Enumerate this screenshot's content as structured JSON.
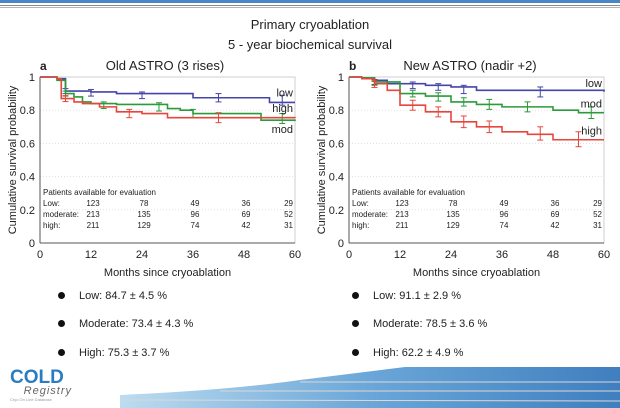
{
  "header": {
    "title": "Primary cryoablation",
    "subtitle": "5 - year biochemical survival"
  },
  "logo": {
    "name": "COLD",
    "registry": "Registry",
    "tagline": "Cryo On Line Database"
  },
  "colors": {
    "low": "#4444aa",
    "moderate": "#2a9a3a",
    "high": "#e8453c",
    "brand_blue": "#4a86c5"
  },
  "chart_data": [
    {
      "type": "line",
      "panel_letter": "a",
      "title": "Old ASTRO (3 rises)",
      "xlabel": "Months since cryoablation",
      "ylabel": "Cumulative survival probability",
      "xlim": [
        0,
        60
      ],
      "ylim": [
        0,
        1
      ],
      "xticks": [
        "0",
        "12",
        "24",
        "36",
        "48",
        "60"
      ],
      "yticks": [
        "0",
        "0.2",
        "0.4",
        "0.6",
        "0.8",
        "1"
      ],
      "grid": true,
      "series": [
        {
          "name": "low",
          "label": "low",
          "color": "#4444aa",
          "steps": [
            [
              0,
              1.0
            ],
            [
              4,
              0.99
            ],
            [
              6,
              0.915
            ],
            [
              12,
              0.91
            ],
            [
              18,
              0.9
            ],
            [
              36,
              0.875
            ],
            [
              54,
              0.847
            ],
            [
              60,
              0.847
            ]
          ],
          "errorbars": [
            [
              6,
              0.915,
              0.015
            ],
            [
              12,
              0.905,
              0.02
            ],
            [
              24,
              0.89,
              0.02
            ],
            [
              42,
              0.875,
              0.025
            ],
            [
              57,
              0.86,
              0.03
            ]
          ]
        },
        {
          "name": "moderate",
          "label": "mod",
          "color": "#2a9a3a",
          "steps": [
            [
              0,
              1.0
            ],
            [
              4,
              0.98
            ],
            [
              6,
              0.9
            ],
            [
              8,
              0.88
            ],
            [
              10,
              0.85
            ],
            [
              12,
              0.84
            ],
            [
              18,
              0.835
            ],
            [
              30,
              0.81
            ],
            [
              33,
              0.8
            ],
            [
              36,
              0.78
            ],
            [
              52,
              0.74
            ],
            [
              60,
              0.734
            ]
          ],
          "errorbars": [
            [
              6,
              0.9,
              0.015
            ],
            [
              15,
              0.83,
              0.02
            ],
            [
              28,
              0.82,
              0.025
            ],
            [
              36,
              0.78,
              0.025
            ],
            [
              57,
              0.75,
              0.03
            ]
          ]
        },
        {
          "name": "high",
          "label": "high",
          "color": "#e8453c",
          "steps": [
            [
              0,
              1.0
            ],
            [
              4,
              0.99
            ],
            [
              5,
              0.87
            ],
            [
              8,
              0.85
            ],
            [
              10,
              0.84
            ],
            [
              14,
              0.82
            ],
            [
              18,
              0.79
            ],
            [
              24,
              0.78
            ],
            [
              30,
              0.755
            ],
            [
              60,
              0.753
            ]
          ],
          "errorbars": [
            [
              6,
              0.87,
              0.018
            ],
            [
              21,
              0.78,
              0.025
            ],
            [
              42,
              0.755,
              0.03
            ]
          ]
        }
      ],
      "at_risk": {
        "heading": "Patients available for evaluation",
        "rows": [
          {
            "label": "Low:",
            "values": [
              "123",
              "78",
              "49",
              "36",
              "29"
            ]
          },
          {
            "label": "moderate:",
            "values": [
              "213",
              "135",
              "96",
              "69",
              "52"
            ]
          },
          {
            "label": "high:",
            "values": [
              "211",
              "129",
              "74",
              "42",
              "31"
            ]
          }
        ]
      },
      "summary": [
        "Low: 84.7 ± 4.5 %",
        "Moderate: 73.4 ± 4.3 %",
        "High: 75.3 ± 3.7 %"
      ]
    },
    {
      "type": "line",
      "panel_letter": "b",
      "title": "New ASTRO (nadir +2)",
      "xlabel": "Months since cryoablation",
      "ylabel": "Cumulative survival probability",
      "xlim": [
        0,
        60
      ],
      "ylim": [
        0,
        1
      ],
      "xticks": [
        "0",
        "12",
        "24",
        "36",
        "48",
        "60"
      ],
      "yticks": [
        "0",
        "0.2",
        "0.4",
        "0.6",
        "0.8",
        "1"
      ],
      "grid": true,
      "series": [
        {
          "name": "low",
          "label": "low",
          "color": "#4444aa",
          "steps": [
            [
              0,
              1.0
            ],
            [
              3,
              0.995
            ],
            [
              6,
              0.98
            ],
            [
              9,
              0.96
            ],
            [
              18,
              0.95
            ],
            [
              24,
              0.94
            ],
            [
              30,
              0.92
            ],
            [
              60,
              0.911
            ]
          ],
          "errorbars": [
            [
              6,
              0.97,
              0.015
            ],
            [
              15,
              0.95,
              0.02
            ],
            [
              21,
              0.94,
              0.02
            ],
            [
              27,
              0.925,
              0.025
            ],
            [
              45,
              0.91,
              0.03
            ]
          ]
        },
        {
          "name": "moderate",
          "label": "mod",
          "color": "#2a9a3a",
          "steps": [
            [
              0,
              1.0
            ],
            [
              3,
              0.995
            ],
            [
              6,
              0.97
            ],
            [
              12,
              0.9
            ],
            [
              18,
              0.885
            ],
            [
              24,
              0.85
            ],
            [
              30,
              0.835
            ],
            [
              36,
              0.82
            ],
            [
              48,
              0.8
            ],
            [
              54,
              0.785
            ],
            [
              60,
              0.785
            ]
          ],
          "errorbars": [
            [
              6,
              0.965,
              0.015
            ],
            [
              15,
              0.9,
              0.02
            ],
            [
              21,
              0.88,
              0.025
            ],
            [
              27,
              0.85,
              0.025
            ],
            [
              33,
              0.835,
              0.03
            ],
            [
              42,
              0.82,
              0.03
            ],
            [
              57,
              0.785,
              0.035
            ]
          ]
        },
        {
          "name": "high",
          "label": "high",
          "color": "#e8453c",
          "steps": [
            [
              0,
              1.0
            ],
            [
              3,
              0.99
            ],
            [
              6,
              0.96
            ],
            [
              9,
              0.92
            ],
            [
              12,
              0.83
            ],
            [
              18,
              0.79
            ],
            [
              24,
              0.73
            ],
            [
              30,
              0.7
            ],
            [
              36,
              0.67
            ],
            [
              42,
              0.655
            ],
            [
              48,
              0.622
            ],
            [
              60,
              0.622
            ]
          ],
          "errorbars": [
            [
              6,
              0.955,
              0.018
            ],
            [
              15,
              0.83,
              0.03
            ],
            [
              21,
              0.79,
              0.03
            ],
            [
              27,
              0.73,
              0.035
            ],
            [
              33,
              0.7,
              0.035
            ],
            [
              45,
              0.66,
              0.04
            ],
            [
              54,
              0.625,
              0.045
            ]
          ]
        }
      ],
      "at_risk": {
        "heading": "Patients available for evaluation",
        "rows": [
          {
            "label": "Low:",
            "values": [
              "123",
              "78",
              "49",
              "36",
              "29"
            ]
          },
          {
            "label": "moderate:",
            "values": [
              "213",
              "135",
              "96",
              "69",
              "52"
            ]
          },
          {
            "label": "high:",
            "values": [
              "211",
              "129",
              "74",
              "42",
              "31"
            ]
          }
        ]
      },
      "summary": [
        "Low: 91.1 ± 2.9 %",
        "Moderate: 78.5 ± 3.6 %",
        "High: 62.2 ± 4.9 %"
      ]
    }
  ]
}
